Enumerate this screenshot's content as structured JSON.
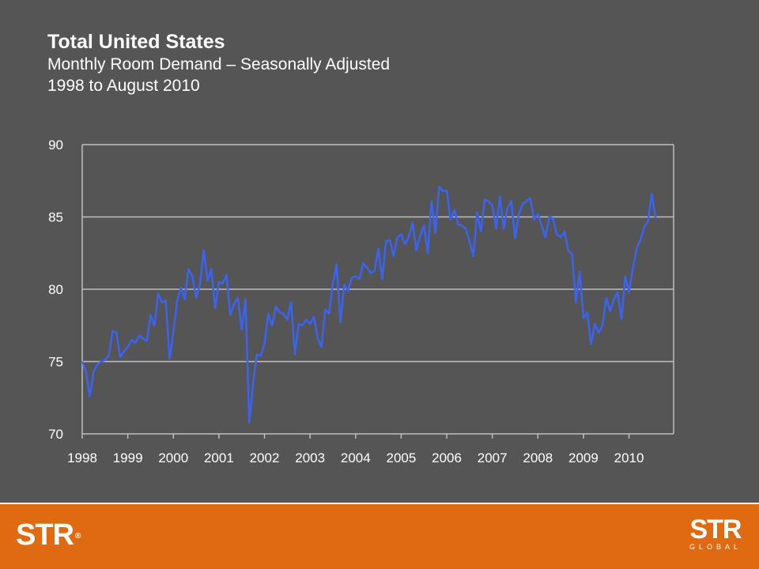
{
  "header": {
    "title": "Total United States",
    "subtitle": "Monthly Room Demand – Seasonally Adjusted",
    "period": "1998 to August 2010"
  },
  "colors": {
    "background": "#555555",
    "line": "#3b63f2",
    "grid": "#bfbfbf",
    "footer": "#e06a12"
  },
  "footer": {
    "logo_left": "STR",
    "logo_left_mark": "®",
    "logo_right": "STR",
    "logo_right_sub": "GLOBAL"
  },
  "chart_data": {
    "type": "line",
    "title": "",
    "xlabel": "",
    "ylabel": "",
    "ylim": [
      70,
      90
    ],
    "yticks": [
      70,
      75,
      80,
      85,
      90
    ],
    "xticks": [
      "1998",
      "1999",
      "2000",
      "2001",
      "2002",
      "2003",
      "2004",
      "2005",
      "2006",
      "2007",
      "2008",
      "2009",
      "2010"
    ],
    "grid": "horizontal",
    "x_start": "1998-01",
    "x_end": "2010-08",
    "series": [
      {
        "values": [
          75.0,
          74.3,
          72.6,
          74.3,
          74.8,
          75.0,
          75.1,
          75.4,
          77.1,
          77.0,
          75.3,
          75.7,
          76.0,
          76.5,
          76.3,
          76.8,
          76.6,
          76.4,
          78.2,
          77.5,
          79.7,
          79.1,
          79.2,
          75.2,
          77.0,
          79.2,
          80.1,
          79.3,
          81.4,
          80.9,
          79.4,
          80.3,
          82.7,
          80.6,
          81.4,
          78.7,
          80.5,
          80.4,
          81.0,
          78.2,
          79.0,
          79.4,
          77.2,
          79.3,
          70.8,
          73.5,
          75.5,
          75.4,
          76.2,
          78.3,
          77.5,
          78.8,
          78.4,
          78.3,
          77.9,
          79.1,
          75.5,
          77.6,
          77.5,
          77.9,
          77.6,
          78.1,
          76.6,
          76.0,
          78.6,
          78.3,
          80.4,
          81.7,
          77.7,
          80.3,
          79.9,
          80.8,
          80.9,
          80.7,
          81.8,
          81.5,
          81.1,
          81.3,
          82.8,
          80.7,
          83.3,
          83.4,
          82.3,
          83.6,
          83.8,
          83.1,
          83.6,
          84.6,
          82.7,
          83.7,
          84.4,
          82.5,
          86.1,
          83.9,
          87.1,
          86.8,
          86.8,
          84.8,
          85.5,
          84.5,
          84.4,
          84.2,
          83.3,
          82.3,
          85.3,
          84.0,
          86.2,
          86.1,
          85.8,
          84.2,
          86.4,
          84.2,
          85.6,
          86.1,
          83.5,
          85.2,
          85.9,
          86.1,
          86.3,
          84.8,
          85.2,
          84.4,
          83.6,
          85.0,
          84.9,
          83.8,
          83.6,
          84.0,
          82.7,
          82.4,
          79.1,
          81.2,
          78.0,
          78.4,
          76.2,
          77.6,
          77.0,
          77.5,
          79.4,
          78.5,
          79.3,
          79.8,
          77.9,
          80.9,
          79.8,
          81.4,
          82.8,
          83.4,
          84.3,
          84.7,
          86.6,
          84.9
        ]
      }
    ]
  }
}
